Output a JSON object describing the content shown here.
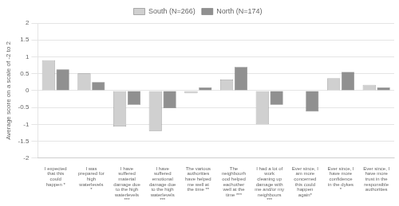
{
  "chart_data": {
    "type": "bar",
    "categories": [
      "I expected\nthat this\ncould\nhappen *",
      "I was\nprepared for\nhigh\nwaterlevels\n*",
      "I have\nsuffered\nmaterial\ndamage due\nto the high\nwaterlevels\n***",
      "I have\nsuffered\nemotional\ndamage due\nto the high\nwaterlevels\n***",
      "The various\nauthorities\nhave helped\nme well at\nthe time **",
      "The\nneighbourh\nood helped\neachother\nwell at the\ntime ***",
      "I had a lot of\nwork\ncleaning up\ndamage with\nme and/or my\nneighbours\n***",
      "Ever since, I\nam more\nconcerned\nthis could\nhappen\nagain*",
      "Ever since, I\nhave more\nconfidence\nin the dykes\n*",
      "Ever since, I\nhave more\ntrust in the\nresponsible\nauthorities"
    ],
    "series": [
      {
        "name": "South (N=266)",
        "color": "#d0d0d0",
        "values": [
          0.9,
          0.51,
          -1.06,
          -1.2,
          -0.08,
          0.33,
          -1.0,
          0.0,
          0.36,
          0.17
        ]
      },
      {
        "name": "North (N=174)",
        "color": "#909090",
        "values": [
          0.63,
          0.25,
          -0.42,
          -0.52,
          0.09,
          0.7,
          -0.42,
          -0.62,
          0.55,
          0.09
        ]
      }
    ],
    "ylabel": "Average score on a scale of -2 to 2",
    "ylim": [
      -2,
      2
    ],
    "yticks": [
      -2,
      -1.5,
      -1,
      -0.5,
      0,
      0.5,
      1,
      1.5,
      2
    ],
    "grid": true,
    "legend": "top"
  }
}
